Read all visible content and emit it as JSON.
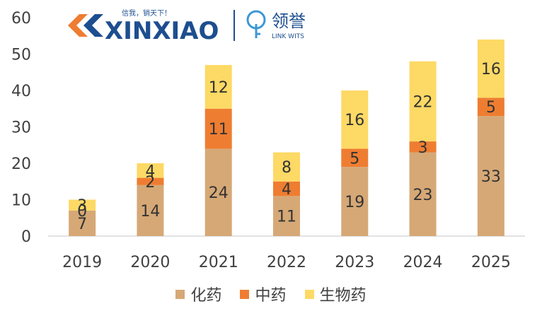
{
  "logos": {
    "left_brand": "XINXIAO",
    "left_slogan": "信我，销天下！",
    "right_brand_cn": "领誉",
    "right_brand_en": "LINK WITS"
  },
  "colors": {
    "chemical": "#D6A876",
    "tcm": "#EE7D31",
    "bio": "#FDD965",
    "logo_orange": "#EE7D31",
    "logo_blue": "#1D4E8F",
    "logo_lightblue": "#3E97D5"
  },
  "chart_data": {
    "type": "bar",
    "stacked": true,
    "categories": [
      "2019",
      "2020",
      "2021",
      "2022",
      "2023",
      "2024",
      "2025"
    ],
    "series": [
      {
        "name": "化药",
        "values": [
          7,
          14,
          24,
          11,
          19,
          23,
          33
        ]
      },
      {
        "name": "中药",
        "values": [
          0,
          2,
          11,
          4,
          5,
          3,
          5
        ]
      },
      {
        "name": "生物药",
        "values": [
          3,
          4,
          12,
          8,
          16,
          22,
          16
        ]
      }
    ],
    "ylim": [
      0,
      60
    ],
    "yticks": [
      "0",
      "10",
      "20",
      "30",
      "40",
      "50",
      "60"
    ],
    "grid": false,
    "legend_placement": "bottom"
  }
}
